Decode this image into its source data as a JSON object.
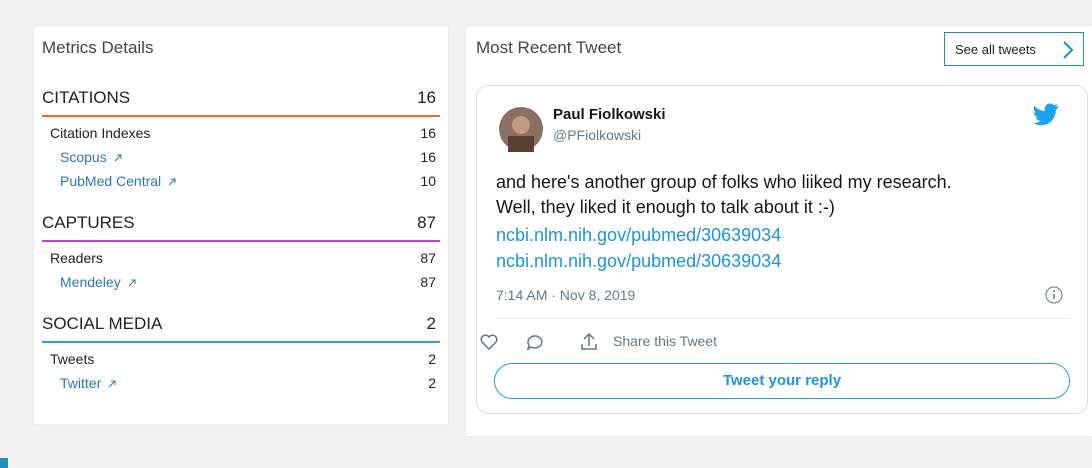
{
  "metrics": {
    "title": "Metrics Details",
    "sections": [
      {
        "name": "CITATIONS",
        "count": "16",
        "groups": [
          {
            "name": "Citation Indexes",
            "count": "16",
            "items": [
              {
                "name": "Scopus",
                "count": "16"
              },
              {
                "name": "PubMed Central",
                "count": "10"
              }
            ]
          }
        ]
      },
      {
        "name": "CAPTURES",
        "count": "87",
        "groups": [
          {
            "name": "Readers",
            "count": "87",
            "items": [
              {
                "name": "Mendeley",
                "count": "87"
              }
            ]
          }
        ]
      },
      {
        "name": "SOCIAL MEDIA",
        "count": "2",
        "groups": [
          {
            "name": "Tweets",
            "count": "2",
            "items": [
              {
                "name": "Twitter",
                "count": "2"
              }
            ]
          }
        ]
      }
    ]
  },
  "tweet_panel": {
    "title": "Most Recent Tweet",
    "see_all": "See all tweets",
    "tweet": {
      "author": "Paul Fiolkowski",
      "handle": "@PFiolkowski",
      "text_lines": [
        "and here's another group of folks who liiked my research.",
        "Well, they liked it enough to talk about it :-)"
      ],
      "links": [
        "ncbi.nlm.nih.gov/pubmed/30639034",
        "ncbi.nlm.nih.gov/pubmed/30639034"
      ],
      "timestamp": "7:14 AM · Nov 8, 2019",
      "share": "Share this Tweet",
      "reply": "Tweet your reply"
    }
  }
}
